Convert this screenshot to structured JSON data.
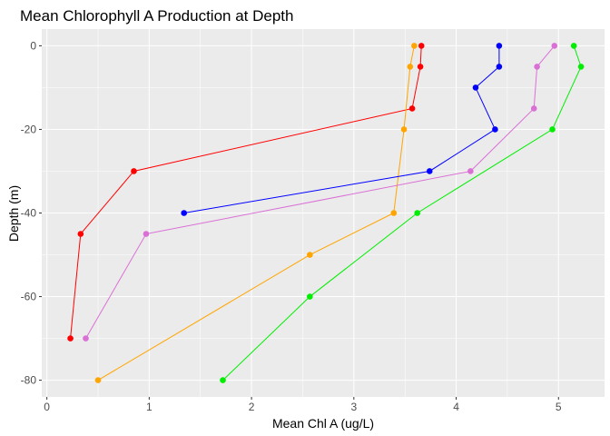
{
  "chart_data": {
    "type": "line",
    "title": "Mean Chlorophyll A Production at Depth",
    "xlabel": "Mean Chl A (ug/L)",
    "ylabel": "Depth (m)",
    "xlim": [
      -0.05,
      5.45
    ],
    "ylim": [
      -84,
      4
    ],
    "x_ticks": [
      0,
      1,
      2,
      3,
      4,
      5
    ],
    "y_ticks": [
      0,
      -20,
      -40,
      -60,
      -80
    ],
    "grid": true,
    "legend": "none",
    "series": [
      {
        "color": "#FF0000",
        "points": [
          [
            3.66,
            0
          ],
          [
            3.65,
            -5
          ],
          [
            3.57,
            -15
          ],
          [
            0.85,
            -30
          ],
          [
            0.33,
            -45
          ],
          [
            0.23,
            -70
          ]
        ]
      },
      {
        "color": "#FFA500",
        "points": [
          [
            3.59,
            0
          ],
          [
            3.55,
            -5
          ],
          [
            3.49,
            -20
          ],
          [
            3.39,
            -40
          ],
          [
            2.57,
            -50
          ],
          [
            0.5,
            -80
          ]
        ]
      },
      {
        "color": "#0000FF",
        "points": [
          [
            4.42,
            0
          ],
          [
            4.42,
            -5
          ],
          [
            4.19,
            -10
          ],
          [
            4.38,
            -20
          ],
          [
            3.74,
            -30
          ],
          [
            1.34,
            -40
          ]
        ]
      },
      {
        "color": "#DA70D6",
        "points": [
          [
            4.96,
            0
          ],
          [
            4.79,
            -5
          ],
          [
            4.76,
            -15
          ],
          [
            4.14,
            -30
          ],
          [
            0.97,
            -45
          ],
          [
            0.38,
            -70
          ]
        ]
      },
      {
        "color": "#00EE00",
        "points": [
          [
            5.15,
            0
          ],
          [
            5.22,
            -5
          ],
          [
            4.94,
            -20
          ],
          [
            3.62,
            -40
          ],
          [
            2.57,
            -60
          ],
          [
            1.72,
            -80
          ]
        ]
      }
    ]
  }
}
